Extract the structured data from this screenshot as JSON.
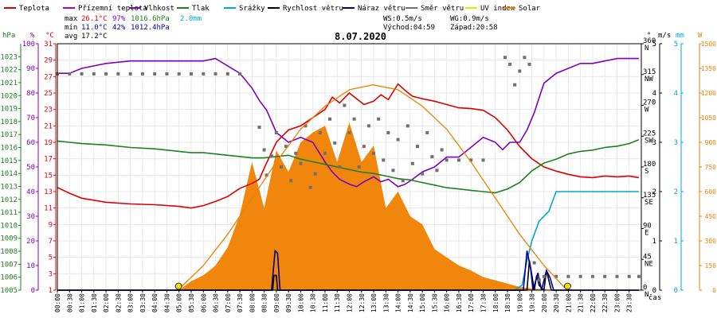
{
  "legend": [
    {
      "label": "Teplota",
      "color": "#dd0000"
    },
    {
      "label": "Přízemní teplota",
      "color": "#b400b4"
    },
    {
      "label": "Vlhkost",
      "color": "#8000c0"
    },
    {
      "label": "Tlak",
      "color": "#208020"
    },
    {
      "label": "Srážky",
      "color": "#00a8d0"
    },
    {
      "label": "Rychlost větru",
      "color": "#000000"
    },
    {
      "label": "Náraz větru",
      "color": "#000090"
    },
    {
      "label": "Směr větru",
      "color": "#707070"
    },
    {
      "label": "UV index",
      "color": "#f0e000"
    },
    {
      "label": "Solar",
      "color": "#f08000"
    }
  ],
  "stats": {
    "max_label": "max",
    "max_temp": "26.1°C",
    "max_hum": "97%",
    "max_press": "1016.6hPa",
    "max_rain": "2.0mm",
    "min_label": "min",
    "min_temp": "11.0°C",
    "min_hum": "42%",
    "min_press": "1012.4hPa",
    "avg_label": "avg",
    "avg_temp": "17.2°C",
    "ws": "WS:0.5m/s",
    "wg": "WG:0.9m/s",
    "sunrise": "Východ:04:59",
    "sunset": "Západ:20:58"
  },
  "date": "8.07.2020",
  "axis_units": {
    "hpa": "hPa",
    "pct": "%",
    "temp": "°C",
    "dir": "°",
    "ms": "m/s",
    "mm": "mm",
    "w": "W",
    "time": "čas"
  },
  "chart_data": {
    "type": "line",
    "title": "8.07.2020",
    "x_ticks": [
      "00:00",
      "00:30",
      "01:00",
      "01:30",
      "02:00",
      "02:30",
      "03:00",
      "03:30",
      "04:00",
      "04:30",
      "05:00",
      "05:30",
      "06:00",
      "06:30",
      "07:00",
      "07:30",
      "08:00",
      "08:30",
      "09:00",
      "09:30",
      "10:00",
      "10:30",
      "11:00",
      "11:30",
      "12:00",
      "12:30",
      "13:00",
      "13:30",
      "14:00",
      "14:30",
      "15:00",
      "15:30",
      "16:00",
      "16:30",
      "17:00",
      "17:30",
      "18:00",
      "18:30",
      "19:00",
      "19:30",
      "20:00",
      "20:30",
      "21:00",
      "21:30",
      "22:00",
      "22:30",
      "23:00",
      "23:30"
    ],
    "axes": {
      "pressure": {
        "label": "hPa",
        "range": [
          1005,
          1024
        ],
        "ticks": [
          1005,
          1006,
          1007,
          1008,
          1009,
          1010,
          1011,
          1012,
          1013,
          1014,
          1015,
          1016,
          1017,
          1018,
          1019,
          1020,
          1021,
          1022,
          1023
        ]
      },
      "humidity": {
        "label": "%",
        "range": [
          0,
          100
        ],
        "ticks": [
          0,
          10,
          20,
          30,
          40,
          50,
          60,
          70,
          80,
          90,
          100
        ]
      },
      "temperature": {
        "label": "°C",
        "range": [
          1,
          31
        ],
        "ticks": [
          1,
          3,
          5,
          7,
          9,
          11,
          13,
          15,
          17,
          19,
          21,
          23,
          25,
          27,
          29,
          31
        ]
      },
      "direction": {
        "label": "°",
        "range": [
          0,
          360
        ],
        "ticks": [
          {
            "v": 0,
            "d": "N"
          },
          {
            "v": 45,
            "d": "NE"
          },
          {
            "v": 90,
            "d": "E"
          },
          {
            "v": 135,
            "d": "SE"
          },
          {
            "v": 180,
            "d": "S"
          },
          {
            "v": 225,
            "d": "SW"
          },
          {
            "v": 270,
            "d": "W"
          },
          {
            "v": 315,
            "d": "NW"
          },
          {
            "v": 360,
            "d": "N"
          }
        ]
      },
      "wind": {
        "label": "m/s",
        "range": [
          0,
          5
        ],
        "ticks": [
          0,
          1,
          2,
          3,
          4,
          5
        ]
      },
      "rain": {
        "label": "mm",
        "range": [
          0,
          5
        ],
        "ticks": [
          0,
          1,
          2,
          3,
          4,
          5
        ]
      },
      "solar": {
        "label": "W",
        "range": [
          0,
          1500
        ],
        "ticks": [
          0,
          150,
          300,
          450,
          600,
          750,
          900,
          1050,
          1200,
          1350,
          1500
        ]
      }
    },
    "series": [
      {
        "name": "Teplota",
        "axis": "temperature",
        "color": "#dd0000",
        "x": [
          0,
          0.5,
          1,
          2,
          3,
          4,
          5,
          5.5,
          6,
          6.5,
          7,
          7.5,
          8,
          8.3,
          8.6,
          9,
          9.5,
          10,
          10.5,
          11,
          11.3,
          11.6,
          12,
          12.3,
          12.6,
          13,
          13.3,
          13.6,
          14,
          14.3,
          14.6,
          15,
          15.5,
          16,
          16.5,
          17,
          17.5,
          18,
          18.5,
          19,
          19.5,
          20,
          20.5,
          21,
          21.5,
          22,
          22.5,
          23,
          23.5,
          23.9
        ],
        "y": [
          13.5,
          12.8,
          12.2,
          11.7,
          11.5,
          11.4,
          11.2,
          11.0,
          11.3,
          11.8,
          12.4,
          13.4,
          14.0,
          14.5,
          16.5,
          19.0,
          20.5,
          21.0,
          22.0,
          23.0,
          24.5,
          23.8,
          25.0,
          24.3,
          23.6,
          24.0,
          24.8,
          24.2,
          26.1,
          25.3,
          24.6,
          24.3,
          24.0,
          23.6,
          23.2,
          23.1,
          22.9,
          22.0,
          20.5,
          18.5,
          17.0,
          16.0,
          15.5,
          15.1,
          14.8,
          14.7,
          14.9,
          14.8,
          14.9,
          14.7
        ]
      },
      {
        "name": "Vlhkost",
        "axis": "humidity",
        "color": "#8000c0",
        "x": [
          0,
          0.5,
          1,
          2,
          3,
          4,
          5,
          5.5,
          6,
          6.5,
          7,
          7.5,
          8,
          8.3,
          8.6,
          9,
          9.5,
          10,
          10.5,
          11,
          11.3,
          11.6,
          12,
          12.3,
          12.6,
          13,
          13.3,
          13.6,
          14,
          14.3,
          14.6,
          15,
          15.5,
          16,
          16.5,
          17,
          17.5,
          18,
          18.3,
          18.6,
          19,
          19.3,
          19.6,
          20,
          20.5,
          21,
          21.5,
          22,
          22.5,
          23,
          23.5,
          23.9
        ],
        "y": [
          88,
          88,
          90,
          92,
          93,
          93,
          93,
          93,
          93,
          94,
          91,
          88,
          82,
          77,
          73,
          64,
          60,
          62,
          60,
          52,
          48,
          45,
          43,
          42,
          44,
          46,
          44,
          45,
          42,
          43,
          45,
          48,
          50,
          54,
          54,
          58,
          62,
          60,
          57,
          60,
          60,
          65,
          72,
          84,
          88,
          90,
          92,
          92,
          93,
          94,
          94,
          94
        ]
      },
      {
        "name": "Tlak",
        "axis": "pressure",
        "color": "#208020",
        "x": [
          0,
          0.5,
          1,
          2,
          3,
          4,
          5,
          5.5,
          6,
          6.5,
          7,
          7.5,
          8,
          8.5,
          9,
          9.5,
          10,
          10.5,
          11,
          11.5,
          12,
          12.5,
          13,
          13.5,
          14,
          14.5,
          15,
          15.5,
          16,
          16.5,
          17,
          17.5,
          18,
          18.5,
          19,
          19.5,
          20,
          20.5,
          21,
          21.5,
          22,
          22.5,
          23,
          23.5,
          23.9
        ],
        "y": [
          1016.5,
          1016.4,
          1016.3,
          1016.2,
          1016.0,
          1015.9,
          1015.7,
          1015.6,
          1015.6,
          1015.5,
          1015.4,
          1015.3,
          1015.2,
          1015.2,
          1015.3,
          1015.4,
          1015.1,
          1014.9,
          1014.7,
          1014.5,
          1014.3,
          1014.1,
          1014.0,
          1013.8,
          1013.6,
          1013.5,
          1013.3,
          1013.1,
          1012.9,
          1012.8,
          1012.7,
          1012.6,
          1012.5,
          1012.8,
          1013.3,
          1014.2,
          1014.8,
          1015.1,
          1015.5,
          1015.7,
          1015.8,
          1016.0,
          1016.1,
          1016.3,
          1016.6
        ]
      },
      {
        "name": "Srážky",
        "axis": "rain",
        "color": "#00a8d0",
        "x": [
          0,
          17.5,
          18,
          18.5,
          18.8,
          19.1,
          19.3,
          19.5,
          19.8,
          20.2,
          20.5,
          21,
          22,
          23,
          23.9
        ],
        "y": [
          0,
          0,
          0,
          0,
          0,
          0.1,
          0.6,
          1.0,
          1.4,
          1.6,
          2.0,
          2.0,
          2.0,
          2.0,
          2.0
        ]
      },
      {
        "name": "Rychlost větru",
        "axis": "wind",
        "color": "#000000",
        "x": [
          0,
          8.85,
          8.9,
          9.0,
          9.05,
          19.3,
          19.4,
          19.5,
          19.6,
          19.7,
          19.8,
          20.0,
          20.1,
          20.2,
          20.3,
          20.4,
          23.9
        ],
        "y": [
          0,
          0,
          0.3,
          0.3,
          0,
          0,
          0.6,
          0.3,
          0,
          0.3,
          0.1,
          0,
          0.4,
          0.2,
          0,
          0,
          0
        ]
      },
      {
        "name": "Náraz větru",
        "axis": "wind",
        "color": "#000090",
        "x": [
          0,
          8.8,
          8.95,
          9.05,
          9.15,
          19.15,
          19.3,
          19.45,
          19.55,
          19.75,
          19.9,
          20.1,
          20.25,
          20.4,
          23.9
        ],
        "y": [
          0,
          0,
          0.8,
          0.75,
          0,
          0,
          0.8,
          0.45,
          0,
          0.35,
          0,
          0.4,
          0.25,
          0,
          0
        ]
      },
      {
        "name": "Směr větru",
        "axis": "direction",
        "color": "#707070",
        "x": [
          0,
          0.5,
          1,
          1.5,
          2,
          2.5,
          3,
          3.5,
          4,
          4.5,
          5,
          5.5,
          6,
          6.5,
          7,
          7.5,
          8.3,
          8.5,
          8.6,
          8.8,
          9,
          9.2,
          9.4,
          9.6,
          9.8,
          10,
          10.2,
          10.4,
          10.6,
          10.8,
          11,
          11.2,
          11.4,
          11.6,
          11.8,
          12,
          12.2,
          12.4,
          12.6,
          12.8,
          13,
          13.2,
          13.4,
          13.6,
          13.8,
          14,
          14.2,
          14.4,
          14.6,
          14.8,
          15,
          15.2,
          15.4,
          15.6,
          15.8,
          16,
          16.5,
          17,
          17.5,
          18.4,
          18.6,
          18.8,
          19,
          19.2,
          19.4,
          19.6,
          19.8,
          20,
          20.5,
          21,
          21.5,
          22,
          22.5,
          23,
          23.5,
          23.9
        ],
        "y": [
          316,
          316,
          316,
          316,
          316,
          316,
          316,
          316,
          316,
          316,
          316,
          316,
          316,
          316,
          316,
          316,
          238,
          205,
          168,
          196,
          230,
          180,
          210,
          160,
          200,
          185,
          240,
          150,
          170,
          230,
          200,
          250,
          215,
          180,
          270,
          230,
          250,
          180,
          210,
          240,
          200,
          250,
          190,
          230,
          175,
          220,
          160,
          240,
          185,
          210,
          170,
          230,
          195,
          175,
          205,
          190,
          190,
          190,
          190,
          340,
          330,
          300,
          320,
          340,
          330,
          40,
          15,
          20,
          20,
          20,
          20,
          20,
          20,
          20,
          20,
          20
        ]
      },
      {
        "name": "Solar",
        "axis": "solar",
        "color": "#f08000",
        "x": [
          0,
          4.95,
          5.0,
          5.5,
          6.0,
          6.5,
          7.0,
          7.5,
          8.0,
          8.5,
          9.0,
          9.5,
          10.0,
          10.5,
          11.0,
          11.5,
          12.0,
          12.5,
          13.0,
          13.5,
          14.0,
          14.5,
          15.0,
          15.5,
          16.0,
          16.5,
          17.0,
          17.5,
          18.0,
          18.5,
          19.0,
          19.5,
          20.0,
          20.5,
          20.95,
          21.0,
          23.9
        ],
        "y": [
          0,
          0,
          0,
          55,
          90,
          150,
          260,
          460,
          780,
          500,
          850,
          720,
          900,
          960,
          1000,
          780,
          1020,
          780,
          880,
          500,
          600,
          450,
          400,
          250,
          200,
          150,
          120,
          80,
          60,
          40,
          20,
          10,
          5,
          0,
          0,
          0,
          0
        ]
      },
      {
        "name": "Solar max",
        "axis": "solar",
        "color": "#f08000",
        "x": [
          4.95,
          6,
          7,
          8,
          9,
          10,
          11,
          12,
          12.97,
          14,
          15,
          16,
          17,
          18,
          19,
          20,
          20.95
        ],
        "y": [
          0,
          150,
          340,
          560,
          780,
          980,
          1120,
          1220,
          1250,
          1220,
          1120,
          980,
          780,
          560,
          340,
          150,
          0
        ]
      }
    ],
    "markers": {
      "sunrise_x": 4.98,
      "sunset_x": 20.97
    }
  }
}
